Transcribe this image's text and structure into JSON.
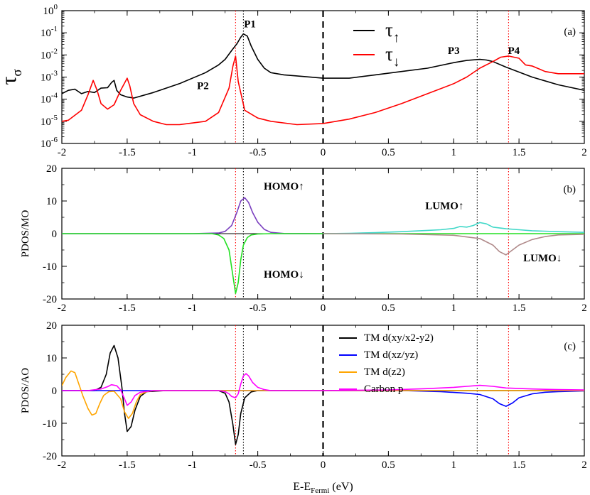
{
  "chart_data": [
    {
      "type": "line",
      "panel": "(a)",
      "scale": "log",
      "ylabel": "τ",
      "ylabel_sub": "σ",
      "xlim": [
        -2,
        2
      ],
      "ylim_exp": [
        -6,
        0
      ],
      "ytick_exps": [
        0,
        -1,
        -2,
        -3,
        -4,
        -5,
        -6
      ],
      "ytick_base": "10",
      "ytick_sup": [
        "0",
        "-1",
        "-2",
        "-3",
        "-4",
        "-5",
        "-6"
      ],
      "xticks": [
        -2,
        -1.5,
        -1,
        -0.5,
        0,
        0.5,
        1,
        1.5,
        2
      ],
      "xtick_labels": [
        "-2",
        "-1.5",
        "-1",
        "-0.5",
        "0",
        "0.5",
        "1",
        "1.5",
        "2"
      ],
      "legend": [
        {
          "label": "τ",
          "arrow": "↑",
          "color": "#000000"
        },
        {
          "label": "τ",
          "arrow": "↓",
          "color": "#ff0000"
        }
      ],
      "annotations": [
        {
          "text": "P1",
          "x": -0.56,
          "yexp": -0.75,
          "color": "#000000"
        },
        {
          "text": "P2",
          "x": -0.92,
          "yexp": -3.55,
          "color": "#e00000"
        },
        {
          "text": "P3",
          "x": 1.0,
          "yexp": -1.95,
          "color": "#000000"
        },
        {
          "text": "P4",
          "x": 1.46,
          "yexp": -1.95,
          "color": "#e00000"
        }
      ],
      "series": [
        {
          "name": "tau_up",
          "color": "#000000",
          "x": [
            -2,
            -1.95,
            -1.9,
            -1.85,
            -1.8,
            -1.75,
            -1.7,
            -1.65,
            -1.62,
            -1.6,
            -1.58,
            -1.55,
            -1.5,
            -1.45,
            -1.3,
            -1.1,
            -0.9,
            -0.8,
            -0.75,
            -0.7,
            -0.66,
            -0.63,
            -0.61,
            -0.58,
            -0.55,
            -0.5,
            -0.45,
            -0.4,
            -0.3,
            -0.2,
            0,
            0.2,
            0.4,
            0.6,
            0.8,
            1.0,
            1.1,
            1.2,
            1.25,
            1.3,
            1.4,
            1.6,
            1.8,
            2.0
          ],
          "yexp": [
            -3.75,
            -3.6,
            -3.55,
            -3.75,
            -3.65,
            -3.7,
            -3.5,
            -3.48,
            -3.25,
            -3.15,
            -3.6,
            -3.8,
            -3.9,
            -3.95,
            -3.7,
            -3.3,
            -2.8,
            -2.45,
            -2.2,
            -1.8,
            -1.5,
            -1.2,
            -1.05,
            -1.15,
            -1.6,
            -2.2,
            -2.6,
            -2.8,
            -2.9,
            -2.95,
            -3.05,
            -3.05,
            -2.9,
            -2.75,
            -2.6,
            -2.35,
            -2.25,
            -2.2,
            -2.23,
            -2.3,
            -2.55,
            -3.0,
            -3.35,
            -3.6
          ]
        },
        {
          "name": "tau_down",
          "color": "#ff0000",
          "x": [
            -2,
            -1.95,
            -1.85,
            -1.8,
            -1.76,
            -1.73,
            -1.7,
            -1.65,
            -1.6,
            -1.55,
            -1.5,
            -1.48,
            -1.45,
            -1.4,
            -1.3,
            -1.2,
            -1.1,
            -0.9,
            -0.8,
            -0.72,
            -0.69,
            -0.67,
            -0.65,
            -0.6,
            -0.5,
            -0.4,
            -0.2,
            0,
            0.2,
            0.4,
            0.6,
            0.8,
            1.0,
            1.1,
            1.2,
            1.3,
            1.36,
            1.42,
            1.5,
            1.55,
            1.6,
            1.7,
            1.8,
            2.0
          ],
          "yexp": [
            -5.0,
            -4.95,
            -4.5,
            -3.8,
            -3.15,
            -3.6,
            -4.2,
            -4.45,
            -4.25,
            -3.6,
            -3.05,
            -3.4,
            -4.2,
            -4.7,
            -5.0,
            -5.15,
            -5.15,
            -5.0,
            -4.6,
            -3.5,
            -2.5,
            -2.05,
            -3.2,
            -4.5,
            -4.85,
            -5.0,
            -5.15,
            -5.1,
            -4.9,
            -4.6,
            -4.2,
            -3.75,
            -3.3,
            -3.0,
            -2.6,
            -2.3,
            -2.1,
            -2.05,
            -2.15,
            -2.45,
            -2.5,
            -2.75,
            -2.85,
            -2.85
          ]
        }
      ]
    },
    {
      "type": "line",
      "panel": "(b)",
      "ylabel": "PDOS/MO",
      "xlim": [
        -2,
        2
      ],
      "ylim": [
        -20,
        20
      ],
      "yticks": [
        20,
        10,
        0,
        -10,
        -20
      ],
      "ytick_labels": [
        "20",
        "10",
        "0",
        "-10",
        "-20"
      ],
      "xticks": [
        -2,
        -1.5,
        -1,
        -0.5,
        0,
        0.5,
        1,
        1.5,
        2
      ],
      "xtick_labels": [
        "-2",
        "-1.5",
        "-1",
        "-0.5",
        "0",
        "0.5",
        "1",
        "1.5",
        "2"
      ],
      "annotations": [
        {
          "text": "HOMO↑",
          "x": -0.3,
          "y": 13.5,
          "color": "#7a3fbf"
        },
        {
          "text": "HOMO↓",
          "x": -0.3,
          "y": -13.5,
          "color": "#22e022"
        },
        {
          "text": "LUMO↑",
          "x": 0.93,
          "y": 7.5,
          "color": "#40d8c8"
        },
        {
          "text": "LUMO↓",
          "x": 1.68,
          "y": -8.5,
          "color": "#b08a8a"
        }
      ],
      "series": [
        {
          "name": "HOMO_up",
          "color": "#7a3fbf",
          "x": [
            -2,
            -1,
            -0.8,
            -0.75,
            -0.7,
            -0.66,
            -0.63,
            -0.6,
            -0.57,
            -0.54,
            -0.5,
            -0.45,
            -0.4,
            -0.3,
            0
          ],
          "y": [
            0,
            0,
            0.2,
            0.7,
            2.5,
            6.5,
            10.0,
            11.0,
            9.5,
            6.5,
            3.5,
            1.3,
            0.4,
            0.05,
            0
          ]
        },
        {
          "name": "HOMO_down",
          "color": "#22e022",
          "x": [
            -2,
            -0.85,
            -0.8,
            -0.76,
            -0.72,
            -0.69,
            -0.67,
            -0.65,
            -0.63,
            -0.61,
            -0.58,
            -0.55,
            -0.5,
            -0.4,
            2
          ],
          "y": [
            0,
            0,
            -0.4,
            -1.5,
            -5.0,
            -13.0,
            -18.3,
            -15.0,
            -8.0,
            -3.5,
            -1.2,
            -0.4,
            -0.1,
            0,
            0
          ]
        },
        {
          "name": "LUMO_up",
          "color": "#40d8c8",
          "x": [
            0,
            0.2,
            0.4,
            0.6,
            0.8,
            0.9,
            1.0,
            1.05,
            1.1,
            1.15,
            1.2,
            1.25,
            1.3,
            1.4,
            1.5,
            1.6,
            1.8,
            2.0
          ],
          "y": [
            0,
            0.1,
            0.3,
            0.6,
            1.0,
            1.2,
            1.6,
            2.2,
            2.0,
            2.5,
            3.4,
            3.0,
            2.0,
            1.5,
            1.2,
            0.9,
            0.6,
            0.4
          ]
        },
        {
          "name": "LUMO_down",
          "color": "#b08a8a",
          "x": [
            0,
            0.6,
            1.0,
            1.2,
            1.3,
            1.35,
            1.4,
            1.45,
            1.5,
            1.6,
            1.7,
            1.8,
            2.0
          ],
          "y": [
            0,
            -0.1,
            -0.5,
            -1.5,
            -3.5,
            -5.5,
            -6.5,
            -5.0,
            -3.5,
            -1.8,
            -0.9,
            -0.4,
            -0.2
          ]
        }
      ]
    },
    {
      "type": "line",
      "panel": "(c)",
      "ylabel": "PDOS/AO",
      "xlabel": "E-E",
      "xlabel_sub": "Fermi",
      "xlabel_suffix": " (eV)",
      "xlim": [
        -2,
        2
      ],
      "ylim": [
        -20,
        20
      ],
      "yticks": [
        20,
        10,
        0,
        -10,
        -20
      ],
      "ytick_labels": [
        "20",
        "10",
        "0",
        "-10",
        "-20"
      ],
      "xticks": [
        -2,
        -1.5,
        -1,
        -0.5,
        0,
        0.5,
        1,
        1.5,
        2
      ],
      "xtick_labels": [
        "-2",
        "-1.5",
        "-1",
        "-0.5",
        "0",
        "0.5",
        "1",
        "1.5",
        "2"
      ],
      "legend": [
        {
          "label": "TM d(xy/x2-y2)",
          "color": "#000000"
        },
        {
          "label": "TM d(xz/yz)",
          "color": "#0000ff"
        },
        {
          "label": "TM d(z2)",
          "color": "#ffa500"
        },
        {
          "label": "Carbon p",
          "color": "#ff00ff"
        }
      ],
      "series": [
        {
          "name": "TM d(xy/x2-y2)",
          "color": "#000000",
          "x": [
            -2,
            -1.75,
            -1.7,
            -1.66,
            -1.63,
            -1.6,
            -1.57,
            -1.54,
            -1.52,
            -1.5,
            -1.47,
            -1.44,
            -1.4,
            -1.35,
            -1.2,
            -0.8,
            -0.75,
            -0.72,
            -0.69,
            -0.67,
            -0.65,
            -0.63,
            -0.6,
            -0.55,
            -0.5,
            2
          ],
          "y": [
            0,
            0,
            1.0,
            5.0,
            11.5,
            13.8,
            10.0,
            1.0,
            -7.0,
            -12.5,
            -11.0,
            -6.0,
            -1.8,
            -0.3,
            0,
            0,
            -0.8,
            -3.5,
            -10.5,
            -16.5,
            -13.5,
            -7.0,
            -2.2,
            -0.4,
            0,
            0
          ]
        },
        {
          "name": "TM d(xz/yz)",
          "color": "#0000ff",
          "x": [
            -2,
            0.6,
            0.9,
            1.1,
            1.2,
            1.3,
            1.35,
            1.4,
            1.45,
            1.5,
            1.6,
            1.7,
            1.8,
            2.0
          ],
          "y": [
            0,
            0,
            -0.3,
            -0.8,
            -1.2,
            -2.5,
            -4.0,
            -4.8,
            -3.8,
            -2.2,
            -1.0,
            -0.5,
            -0.3,
            -0.1
          ]
        },
        {
          "name": "TM d(z2)",
          "color": "#ffa500",
          "x": [
            -2,
            -1.97,
            -1.93,
            -1.9,
            -1.87,
            -1.84,
            -1.8,
            -1.77,
            -1.74,
            -1.71,
            -1.68,
            -1.64,
            -1.6,
            -1.55,
            -1.52,
            -1.49,
            -1.46,
            -1.43,
            -1.4,
            -1.35,
            -1.3,
            2
          ],
          "y": [
            1.5,
            4.0,
            6.0,
            5.5,
            2.0,
            -1.5,
            -5.5,
            -7.5,
            -7.0,
            -4.0,
            -1.5,
            -0.3,
            -0.2,
            -2.5,
            -6.5,
            -8.5,
            -7.0,
            -3.5,
            -1.2,
            -0.3,
            0,
            0
          ]
        },
        {
          "name": "Carbon p",
          "color": "#ff00ff",
          "x": [
            -2,
            -1.8,
            -1.7,
            -1.65,
            -1.62,
            -1.58,
            -1.55,
            -1.52,
            -1.5,
            -1.47,
            -1.44,
            -1.4,
            -1.3,
            -0.8,
            -0.75,
            -0.72,
            -0.7,
            -0.67,
            -0.65,
            -0.63,
            -0.61,
            -0.59,
            -0.57,
            -0.54,
            -0.5,
            -0.45,
            -0.4,
            0,
            0.5,
            0.8,
            1.0,
            1.1,
            1.2,
            1.3,
            1.4,
            1.6,
            1.8,
            2.0
          ],
          "y": [
            0,
            0,
            0.5,
            1.2,
            1.8,
            1.5,
            0.2,
            -2.5,
            -4.5,
            -3.5,
            -1.5,
            -0.5,
            0,
            0,
            -0.3,
            -1.0,
            -1.8,
            -2.2,
            -1.0,
            2.0,
            4.5,
            5.2,
            4.5,
            2.5,
            1.0,
            0.3,
            0,
            0,
            0.2,
            0.6,
            1.0,
            1.3,
            1.6,
            1.3,
            0.8,
            0.5,
            0.3,
            0.2
          ]
        }
      ]
    }
  ]
}
